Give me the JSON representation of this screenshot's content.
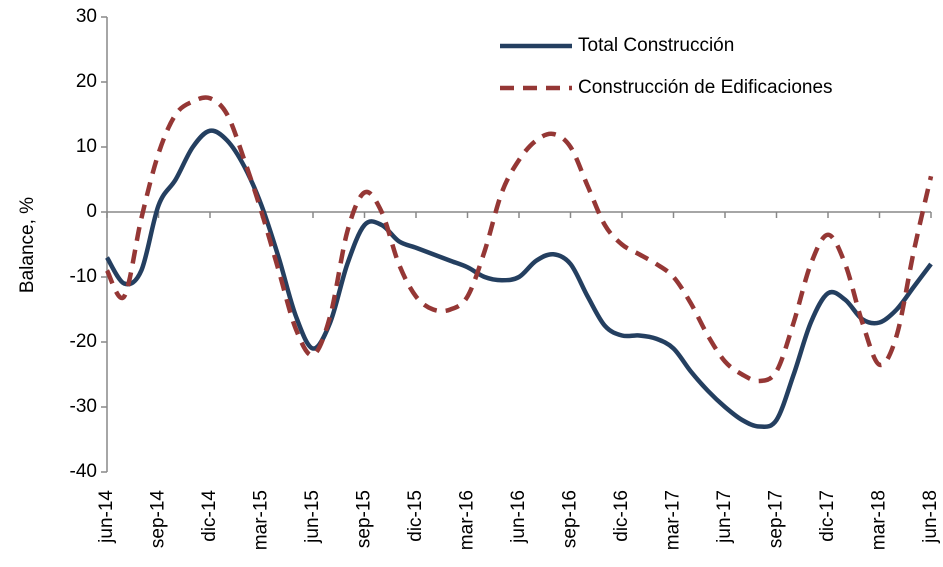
{
  "chart_data": {
    "type": "line",
    "y_label": "Balance, %",
    "categories": [
      "jun-14",
      null,
      null,
      "sep-14",
      null,
      null,
      "dic-14",
      null,
      null,
      "mar-15",
      null,
      null,
      "jun-15",
      null,
      null,
      "sep-15",
      null,
      null,
      "dic-15",
      null,
      null,
      "mar-16",
      null,
      null,
      "jun-16",
      null,
      null,
      "sep-16",
      null,
      null,
      "dic-16",
      null,
      null,
      "mar-17",
      null,
      null,
      "jun-17",
      null,
      null,
      "sep-17",
      null,
      null,
      "dic-17",
      null,
      null,
      "mar-18",
      null,
      null,
      "jun-18"
    ],
    "series": [
      {
        "name": "Total Construcción",
        "color": "#243f60",
        "dash": false,
        "values": [
          -7,
          -11,
          -9,
          1,
          5,
          10,
          12.5,
          11,
          7,
          1,
          -7,
          -16,
          -21,
          -17,
          -8,
          -2,
          -2,
          -4.5,
          -5.5,
          -6.5,
          -7.5,
          -8.5,
          -10,
          -10.5,
          -10,
          -7.5,
          -6.5,
          -8,
          -13,
          -17.5,
          -19,
          -19,
          -19.5,
          -21,
          -24.5,
          -27.5,
          -30,
          -32,
          -33,
          -32,
          -25,
          -17,
          -12.5,
          -13.5,
          -16.5,
          -17,
          -15,
          -11.5,
          -8
        ]
      },
      {
        "name": "Construcción de Edificaciones",
        "color": "#953735",
        "dash": true,
        "values": [
          -9,
          -13,
          -1,
          9,
          15,
          17,
          17.5,
          15,
          8,
          0,
          -9,
          -18,
          -22,
          -16,
          -3,
          3,
          0,
          -8,
          -13,
          -15,
          -15,
          -13,
          -6,
          3,
          8,
          11,
          12,
          10,
          4,
          -2,
          -5,
          -6.5,
          -8,
          -10,
          -14,
          -19,
          -23,
          -25,
          -26,
          -24.5,
          -17,
          -8,
          -3.5,
          -8,
          -17,
          -23.5,
          -19,
          -6,
          5.5
        ]
      }
    ],
    "ylim": [
      -40,
      30
    ],
    "yticks": [
      -40,
      -30,
      -20,
      -10,
      0,
      10,
      20,
      30
    ],
    "legend": "top-right"
  }
}
